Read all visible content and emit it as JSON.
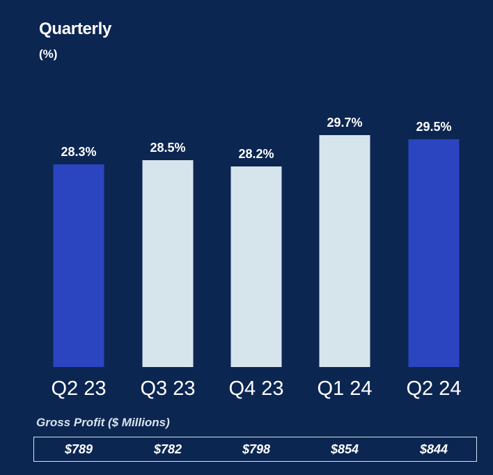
{
  "chart_data": {
    "type": "bar",
    "title": "Quarterly",
    "subtitle": "(%)",
    "categories": [
      "Q2 23",
      "Q3 23",
      "Q4 23",
      "Q1 24",
      "Q2 24"
    ],
    "values": [
      28.3,
      28.5,
      28.2,
      29.7,
      29.5
    ],
    "value_labels": [
      "28.3%",
      "28.5%",
      "28.2%",
      "29.7%",
      "29.5%"
    ],
    "colors": [
      "#2a45bf",
      "#d6e4ec",
      "#d6e4ec",
      "#d6e4ec",
      "#2a45bf"
    ],
    "grid": false,
    "legend": "none"
  },
  "gross_profit": {
    "label": "Gross Profit ($ Millions)",
    "values": [
      "$789",
      "$782",
      "$798",
      "$854",
      "$844"
    ]
  }
}
